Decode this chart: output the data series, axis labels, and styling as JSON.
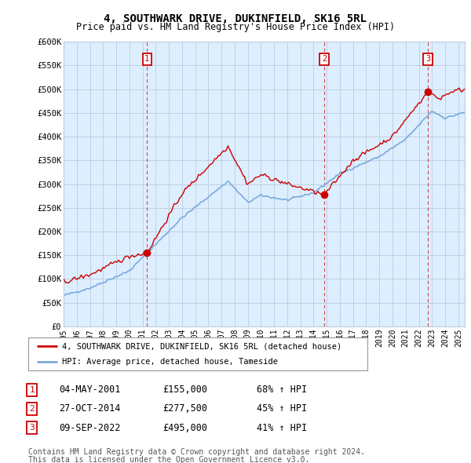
{
  "title": "4, SOUTHWARK DRIVE, DUKINFIELD, SK16 5RL",
  "subtitle": "Price paid vs. HM Land Registry's House Price Index (HPI)",
  "ylabel_ticks": [
    "£0",
    "£50K",
    "£100K",
    "£150K",
    "£200K",
    "£250K",
    "£300K",
    "£350K",
    "£400K",
    "£450K",
    "£500K",
    "£550K",
    "£600K"
  ],
  "ylim": [
    0,
    600000
  ],
  "xlim_start": 1995.0,
  "xlim_end": 2025.5,
  "sale_dates": [
    2001.34,
    2014.82,
    2022.69
  ],
  "sale_prices": [
    155000,
    277500,
    495000
  ],
  "sale_labels": [
    "1",
    "2",
    "3"
  ],
  "legend_line1": "4, SOUTHWARK DRIVE, DUKINFIELD, SK16 5RL (detached house)",
  "legend_line2": "HPI: Average price, detached house, Tameside",
  "table_rows": [
    [
      "1",
      "04-MAY-2001",
      "£155,000",
      "68% ↑ HPI"
    ],
    [
      "2",
      "27-OCT-2014",
      "£277,500",
      "45% ↑ HPI"
    ],
    [
      "3",
      "09-SEP-2022",
      "£495,000",
      "41% ↑ HPI"
    ]
  ],
  "footnote1": "Contains HM Land Registry data © Crown copyright and database right 2024.",
  "footnote2": "This data is licensed under the Open Government Licence v3.0.",
  "red_color": "#cc0000",
  "blue_color": "#7aaadd",
  "background_color": "#ffffff",
  "chart_bg_color": "#ddeeff",
  "grid_color": "#bbccdd"
}
